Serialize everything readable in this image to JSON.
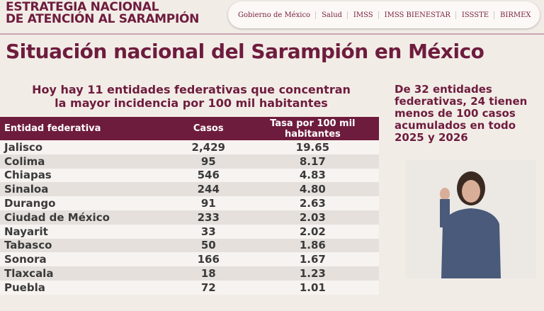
{
  "header": {
    "title_line1": "ESTRATEGIA NACIONAL",
    "title_line2": "DE ATENCIÓN AL SARAMPIÓN",
    "logos": [
      "Gobierno de México",
      "Salud",
      "IMSS",
      "IMSS BIENESTAR",
      "ISSSTE",
      "BIRMEX"
    ]
  },
  "page_title": "Situación nacional del Sarampión en México",
  "subtitle_line1": "Hoy hay 11 entidades federativas que concentran",
  "subtitle_line2": "la mayor incidencia por 100 mil habitantes",
  "table": {
    "headers": [
      "Entidad federativa",
      "Casos",
      "Tasa por 100 mil habitantes"
    ],
    "rows": [
      [
        "Jalisco",
        "2,429",
        "19.65"
      ],
      [
        "Colima",
        "95",
        "8.17"
      ],
      [
        "Chiapas",
        "546",
        "4.83"
      ],
      [
        "Sinaloa",
        "244",
        "4.80"
      ],
      [
        "Durango",
        "91",
        "2.63"
      ],
      [
        "Ciudad de México",
        "233",
        "2.03"
      ],
      [
        "Nayarit",
        "33",
        "2.02"
      ],
      [
        "Tabasco",
        "50",
        "1.86"
      ],
      [
        "Sonora",
        "166",
        "1.67"
      ],
      [
        "Tlaxcala",
        "18",
        "1.23"
      ],
      [
        "Puebla",
        "72",
        "1.01"
      ]
    ]
  },
  "side_note": "De 32 entidades federativas, 24 tienen menos de 100 casos acumulados en todo 2025 y 2026",
  "colors": {
    "brand": "#6e1c3d",
    "background": "#f2ece7"
  }
}
